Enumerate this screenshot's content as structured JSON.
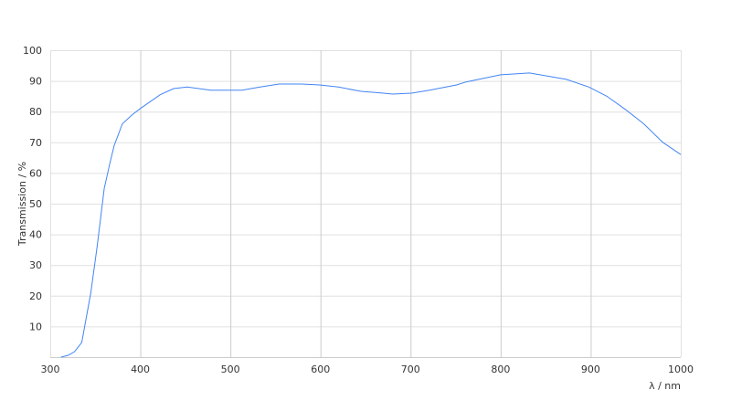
{
  "chart_data": {
    "type": "line",
    "title": "",
    "xlabel": "λ / nm",
    "ylabel": "Transmission / %",
    "xlim": [
      300,
      1000
    ],
    "ylim": [
      0,
      100
    ],
    "xticks": [
      300,
      400,
      500,
      600,
      700,
      800,
      900,
      1000
    ],
    "yticks": [
      10,
      20,
      30,
      40,
      50,
      60,
      70,
      80,
      90,
      100
    ],
    "grid": true,
    "line_color": "#4285f4",
    "series": [
      {
        "x": [
          312,
          320,
          327,
          335,
          345,
          352,
          360,
          366,
          371,
          380,
          391,
          400,
          422,
          437,
          452,
          478,
          493,
          513,
          533,
          554,
          579,
          599,
          620,
          645,
          670,
          680,
          701,
          721,
          751,
          761,
          800,
          832,
          873,
          898,
          918,
          939,
          959,
          980,
          1000
        ],
        "y": [
          0,
          0.6,
          1.8,
          4.8,
          21,
          36,
          55,
          63,
          69,
          76,
          79,
          81,
          85.5,
          87.5,
          88,
          87,
          87,
          87,
          88,
          89,
          89,
          88.7,
          88,
          86.6,
          86,
          85.7,
          86,
          87,
          88.7,
          89.6,
          92,
          92.6,
          90.5,
          88,
          85,
          80.6,
          76,
          70,
          66
        ]
      }
    ]
  }
}
